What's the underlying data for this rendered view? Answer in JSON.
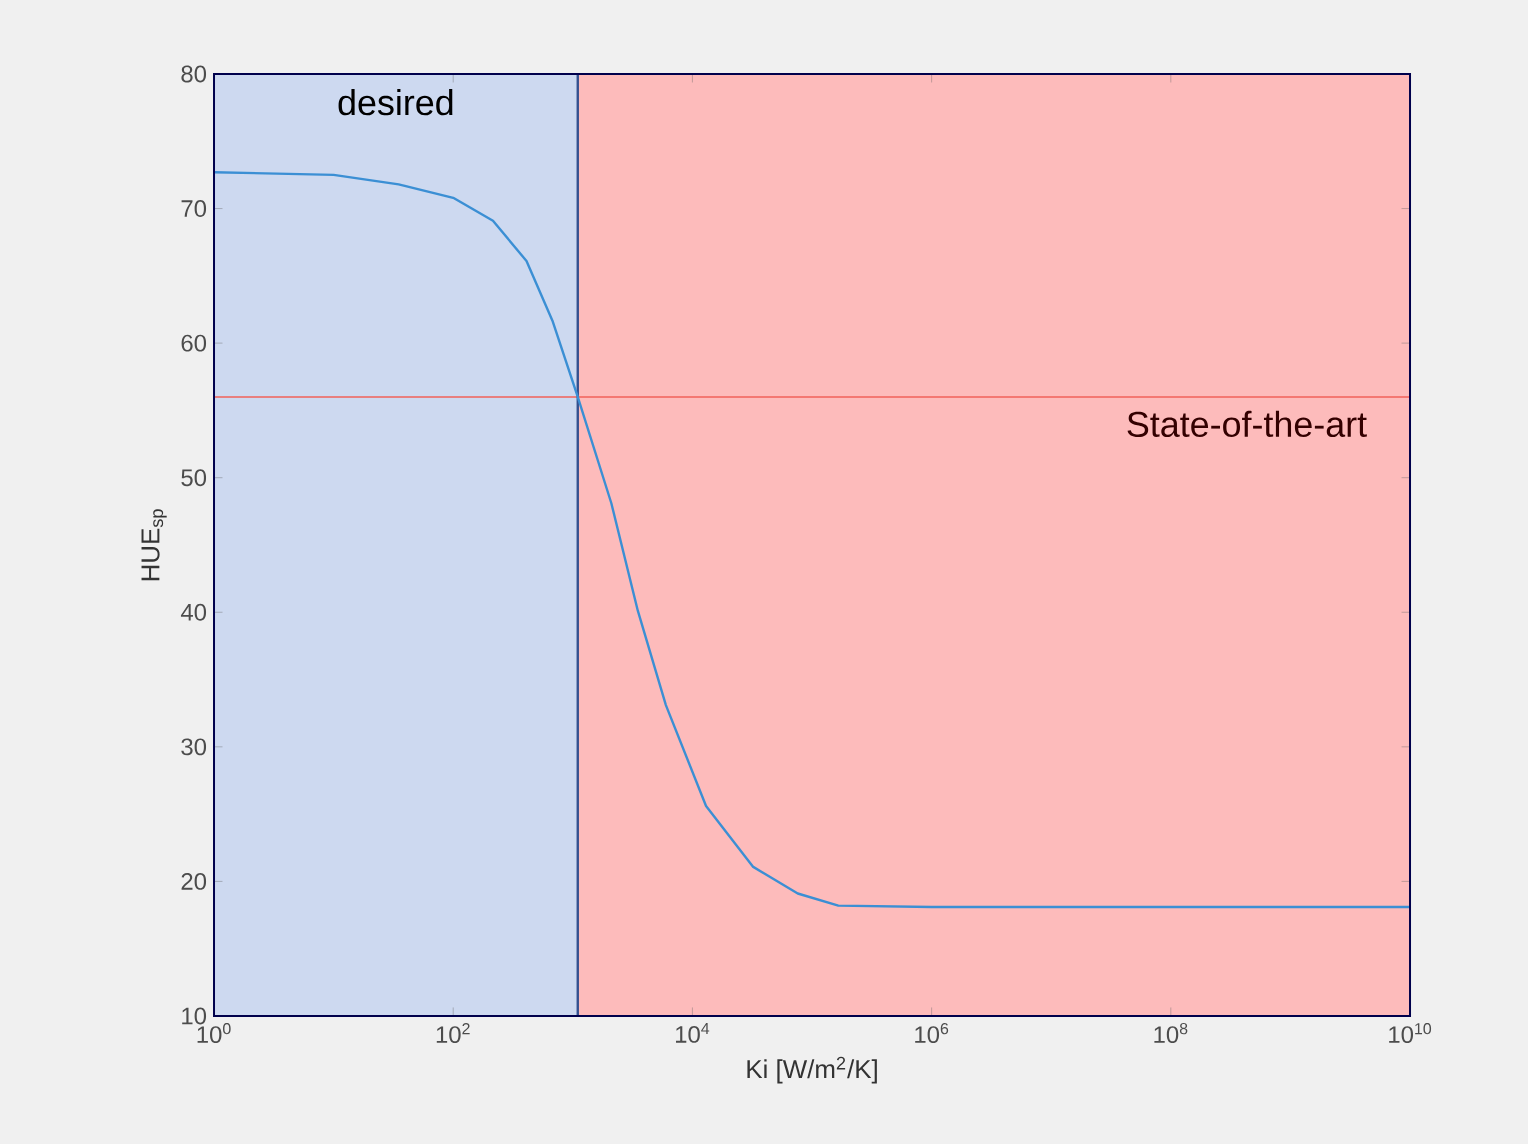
{
  "chart_data": {
    "type": "line",
    "xlabel": "Ki [W/m$^{2}$/K]",
    "ylabel": "HUE$_{sp}$",
    "log": "x",
    "xlim": [
      1,
      10000000000
    ],
    "ylim": [
      10,
      80
    ],
    "xticks": [
      {
        "value": 1,
        "label": "10$^{0}$"
      },
      {
        "value": 100,
        "label": "10$^{2}$"
      },
      {
        "value": 10000,
        "label": "10$^{4}$"
      },
      {
        "value": 1000000,
        "label": "10$^{6}$"
      },
      {
        "value": 100000000,
        "label": "10$^{8}$"
      },
      {
        "value": 10000000000,
        "label": "10$^{10}$"
      }
    ],
    "yticks": [
      10,
      20,
      30,
      40,
      50,
      60,
      70,
      80
    ],
    "grid": false,
    "marker": "none",
    "line_style": "solid",
    "series": [
      {
        "color": "#3b8fd4",
        "x": [
          1,
          10,
          35,
          100,
          215,
          410,
          680,
          1100,
          2100,
          3500,
          6000,
          13000,
          32000,
          76000,
          166000,
          1000000,
          100000000,
          10000000000
        ],
        "values": [
          72.7,
          72.5,
          71.8,
          70.8,
          69.1,
          66.1,
          61.6,
          56,
          48.1,
          40.1,
          33.1,
          25.6,
          21.1,
          19.1,
          18.2,
          18.1,
          18.1,
          18.1
        ]
      }
    ],
    "bands": [
      {
        "axis": "x",
        "from": 1,
        "to": 1100,
        "label": "desired",
        "color": "#cdd9f0"
      },
      {
        "axis": "x",
        "from": 1100,
        "to": 10000000000,
        "label": "State-of-the-art",
        "color": "#fdbbbb"
      }
    ],
    "ref_lines": [
      {
        "axis": "y",
        "value": 56,
        "color": "#f0605a"
      },
      {
        "axis": "x",
        "value": 1100,
        "color": "#34508f"
      }
    ]
  }
}
